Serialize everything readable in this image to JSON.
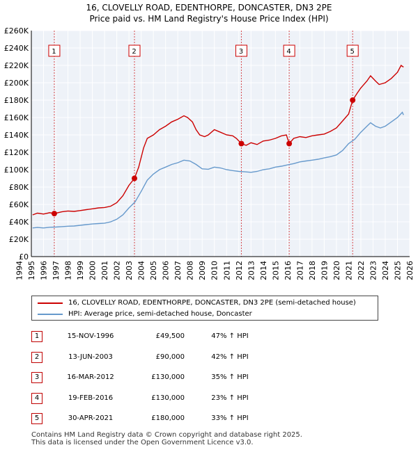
{
  "chart_data": {
    "type": "line",
    "title": "16, CLOVELLY ROAD, EDENTHORPE, DONCASTER, DN3 2PE",
    "subtitle": "Price paid vs. HM Land Registry's House Price Index (HPI)",
    "xlim": [
      1995,
      2026
    ],
    "ylim": [
      0,
      260000
    ],
    "y_ticks": [
      0,
      20000,
      40000,
      60000,
      80000,
      100000,
      120000,
      140000,
      160000,
      180000,
      200000,
      220000,
      240000,
      260000
    ],
    "y_tick_labels": [
      "£0",
      "£20K",
      "£40K",
      "£60K",
      "£80K",
      "£100K",
      "£120K",
      "£140K",
      "£160K",
      "£180K",
      "£200K",
      "£220K",
      "£240K",
      "£260K"
    ],
    "x_tick_labels": [
      "1994",
      "1995",
      "1996",
      "1997",
      "1998",
      "1999",
      "2000",
      "2001",
      "2002",
      "2003",
      "2004",
      "2005",
      "2006",
      "2007",
      "2008",
      "2009",
      "2010",
      "2011",
      "2012",
      "2013",
      "2014",
      "2015",
      "2016",
      "2017",
      "2018",
      "2019",
      "2020",
      "2021",
      "2022",
      "2023",
      "2024",
      "2025",
      "2026"
    ],
    "series": [
      {
        "name": "16, CLOVELLY ROAD, EDENTHORPE, DONCASTER, DN3 2PE (semi-detached house)",
        "color": "#cc0000",
        "points": [
          [
            1995.1,
            48000
          ],
          [
            1995.5,
            50000
          ],
          [
            1996.0,
            49000
          ],
          [
            1996.5,
            50500
          ],
          [
            1996.88,
            49500
          ],
          [
            1997.5,
            51500
          ],
          [
            1998.0,
            52500
          ],
          [
            1998.5,
            52000
          ],
          [
            1999.0,
            53000
          ],
          [
            1999.5,
            54000
          ],
          [
            2000.0,
            55000
          ],
          [
            2000.5,
            56000
          ],
          [
            2001.0,
            56500
          ],
          [
            2001.5,
            58000
          ],
          [
            2002.0,
            62000
          ],
          [
            2002.5,
            70000
          ],
          [
            2003.0,
            82000
          ],
          [
            2003.45,
            90000
          ],
          [
            2003.8,
            103000
          ],
          [
            2004.2,
            125000
          ],
          [
            2004.5,
            136000
          ],
          [
            2005.0,
            140000
          ],
          [
            2005.5,
            146000
          ],
          [
            2006.0,
            150000
          ],
          [
            2006.5,
            155000
          ],
          [
            2007.0,
            158000
          ],
          [
            2007.5,
            162000
          ],
          [
            2007.8,
            160000
          ],
          [
            2008.2,
            155000
          ],
          [
            2008.5,
            146000
          ],
          [
            2008.8,
            140000
          ],
          [
            2009.2,
            138000
          ],
          [
            2009.5,
            140000
          ],
          [
            2010.0,
            146000
          ],
          [
            2010.5,
            143000
          ],
          [
            2011.0,
            140000
          ],
          [
            2011.5,
            139000
          ],
          [
            2011.8,
            136000
          ],
          [
            2012.21,
            130000
          ],
          [
            2012.6,
            128000
          ],
          [
            2013.0,
            131000
          ],
          [
            2013.5,
            129000
          ],
          [
            2014.0,
            133000
          ],
          [
            2014.5,
            134000
          ],
          [
            2015.0,
            136000
          ],
          [
            2015.5,
            139000
          ],
          [
            2015.9,
            140000
          ],
          [
            2016.13,
            130000
          ],
          [
            2016.5,
            136000
          ],
          [
            2017.0,
            138000
          ],
          [
            2017.5,
            137000
          ],
          [
            2018.0,
            139000
          ],
          [
            2018.5,
            140000
          ],
          [
            2019.0,
            141000
          ],
          [
            2019.5,
            144000
          ],
          [
            2020.0,
            148000
          ],
          [
            2020.5,
            156000
          ],
          [
            2021.0,
            164000
          ],
          [
            2021.33,
            180000
          ],
          [
            2021.7,
            188000
          ],
          [
            2022.0,
            194000
          ],
          [
            2022.5,
            202000
          ],
          [
            2022.8,
            208000
          ],
          [
            2023.2,
            202000
          ],
          [
            2023.5,
            198000
          ],
          [
            2024.0,
            200000
          ],
          [
            2024.5,
            205000
          ],
          [
            2025.0,
            212000
          ],
          [
            2025.3,
            220000
          ],
          [
            2025.5,
            218000
          ]
        ]
      },
      {
        "name": "HPI: Average price, semi-detached house, Doncaster",
        "color": "#6699cc",
        "points": [
          [
            1995.1,
            33000
          ],
          [
            1995.5,
            33500
          ],
          [
            1996.0,
            33000
          ],
          [
            1996.5,
            33800
          ],
          [
            1997.0,
            34000
          ],
          [
            1997.5,
            34500
          ],
          [
            1998.0,
            35000
          ],
          [
            1998.5,
            35200
          ],
          [
            1999.0,
            36000
          ],
          [
            1999.5,
            36800
          ],
          [
            2000.0,
            37500
          ],
          [
            2000.5,
            38000
          ],
          [
            2001.0,
            38500
          ],
          [
            2001.5,
            40000
          ],
          [
            2002.0,
            43000
          ],
          [
            2002.5,
            48000
          ],
          [
            2003.0,
            56000
          ],
          [
            2003.5,
            63000
          ],
          [
            2004.0,
            75000
          ],
          [
            2004.5,
            88000
          ],
          [
            2005.0,
            95000
          ],
          [
            2005.5,
            100000
          ],
          [
            2006.0,
            103000
          ],
          [
            2006.5,
            106000
          ],
          [
            2007.0,
            108000
          ],
          [
            2007.5,
            111000
          ],
          [
            2008.0,
            110000
          ],
          [
            2008.5,
            106000
          ],
          [
            2009.0,
            101000
          ],
          [
            2009.5,
            100500
          ],
          [
            2010.0,
            103000
          ],
          [
            2010.5,
            102000
          ],
          [
            2011.0,
            100000
          ],
          [
            2011.5,
            99000
          ],
          [
            2012.0,
            98000
          ],
          [
            2012.5,
            97500
          ],
          [
            2013.0,
            97000
          ],
          [
            2013.5,
            98000
          ],
          [
            2014.0,
            100000
          ],
          [
            2014.5,
            101000
          ],
          [
            2015.0,
            103000
          ],
          [
            2015.5,
            104000
          ],
          [
            2016.0,
            105500
          ],
          [
            2016.5,
            107000
          ],
          [
            2017.0,
            109000
          ],
          [
            2017.5,
            110000
          ],
          [
            2018.0,
            111000
          ],
          [
            2018.5,
            112000
          ],
          [
            2019.0,
            113500
          ],
          [
            2019.5,
            115000
          ],
          [
            2020.0,
            117000
          ],
          [
            2020.5,
            122000
          ],
          [
            2021.0,
            130000
          ],
          [
            2021.5,
            135000
          ],
          [
            2022.0,
            143000
          ],
          [
            2022.5,
            150000
          ],
          [
            2022.8,
            154000
          ],
          [
            2023.2,
            150000
          ],
          [
            2023.6,
            148000
          ],
          [
            2024.0,
            150000
          ],
          [
            2024.5,
            155000
          ],
          [
            2025.0,
            160000
          ],
          [
            2025.4,
            166000
          ],
          [
            2025.5,
            163000
          ]
        ]
      }
    ],
    "sale_markers": [
      {
        "label": "1",
        "x": 1996.88,
        "y": 49500
      },
      {
        "label": "2",
        "x": 2003.45,
        "y": 90000
      },
      {
        "label": "3",
        "x": 2012.21,
        "y": 130000
      },
      {
        "label": "4",
        "x": 2016.13,
        "y": 130000
      },
      {
        "label": "5",
        "x": 2021.33,
        "y": 180000
      }
    ]
  },
  "legend": {
    "property_label": "16, CLOVELLY ROAD, EDENTHORPE, DONCASTER, DN3 2PE (semi-detached house)",
    "hpi_label": "HPI: Average price, semi-detached house, Doncaster"
  },
  "sales": [
    {
      "num": "1",
      "date": "15-NOV-1996",
      "price": "£49,500",
      "hpi": "47% ↑ HPI"
    },
    {
      "num": "2",
      "date": "13-JUN-2003",
      "price": "£90,000",
      "hpi": "42% ↑ HPI"
    },
    {
      "num": "3",
      "date": "16-MAR-2012",
      "price": "£130,000",
      "hpi": "35% ↑ HPI"
    },
    {
      "num": "4",
      "date": "19-FEB-2016",
      "price": "£130,000",
      "hpi": "23% ↑ HPI"
    },
    {
      "num": "5",
      "date": "30-APR-2021",
      "price": "£180,000",
      "hpi": "33% ↑ HPI"
    }
  ],
  "footer": {
    "line1": "Contains HM Land Registry data © Crown copyright and database right 2025.",
    "line2": "This data is licensed under the Open Government Licence v3.0."
  }
}
